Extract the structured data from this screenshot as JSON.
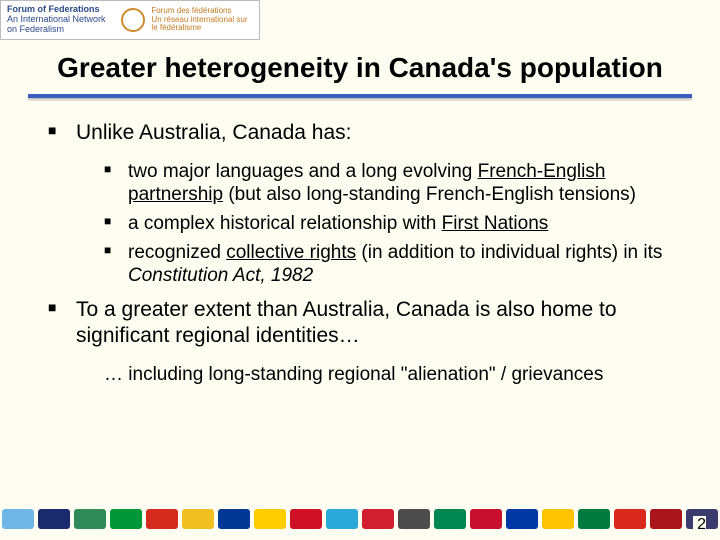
{
  "logo": {
    "left_line1": "Forum of Federations",
    "left_line2": "An International Network on Federalism",
    "right_line1": "Forum des fédérations",
    "right_line2": "Un réseau international sur le fédéralisme"
  },
  "title": "Greater heterogeneity in Canada's population",
  "bullets": {
    "l1a": "Unlike Australia, Canada has:",
    "l2a_pre": "two major languages and a long evolving ",
    "l2a_u": "French-English partnership",
    "l2a_post": " (but also long-standing French-English tensions)",
    "l2b_pre": "a complex historical relationship with ",
    "l2b_u": "First Nations",
    "l2c_pre": "recognized ",
    "l2c_u": "collective rights",
    "l2c_mid": " (in addition to individual rights) in its ",
    "l2c_i": "Constitution Act, 1982",
    "l1b": "To a greater extent than Australia, Canada is also home to significant regional identities…",
    "sub_plain": "… including long-standing regional \"alienation\" / grievances"
  },
  "page_number": "2",
  "flag_colors": [
    "#6fb7e6",
    "#1a2a6c",
    "#2e8b57",
    "#009739",
    "#d52b1e",
    "#f0c020",
    "#003893",
    "#ffcc00",
    "#ce1126",
    "#2aa8d8",
    "#d11f2f",
    "#4c4c4c",
    "#008751",
    "#c8102e",
    "#0039a6",
    "#ffc400",
    "#007a3d",
    "#da291c",
    "#aa151b",
    "#3c3b6e"
  ]
}
